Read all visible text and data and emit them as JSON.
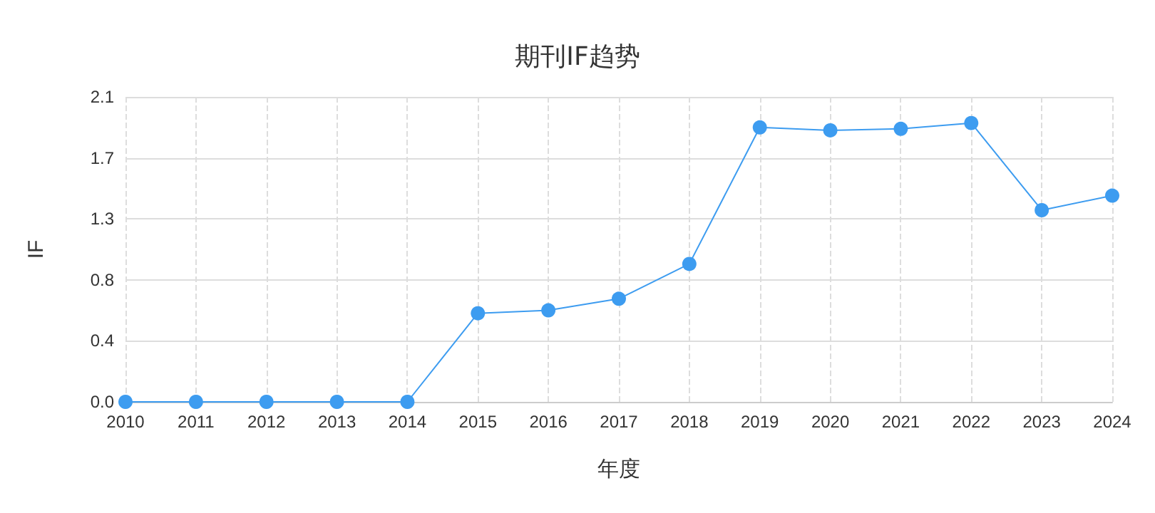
{
  "chart_data": {
    "type": "line",
    "title": "期刊IF趋势",
    "xlabel": "年度",
    "ylabel": "IF",
    "categories": [
      "2010",
      "2011",
      "2012",
      "2013",
      "2014",
      "2015",
      "2016",
      "2017",
      "2018",
      "2019",
      "2020",
      "2021",
      "2022",
      "2023",
      "2024"
    ],
    "series": [
      {
        "color": "#3d9cf0",
        "values": [
          0,
          0,
          0,
          0,
          0,
          0.61,
          0.63,
          0.71,
          0.95,
          1.89,
          1.87,
          1.88,
          1.92,
          1.32,
          1.42
        ]
      }
    ],
    "ylim": [
      0,
      2.1
    ],
    "yticks": [
      {
        "value": 0,
        "label": "0.0"
      },
      {
        "value": 0.42,
        "label": "0.4"
      },
      {
        "value": 0.84,
        "label": "0.8"
      },
      {
        "value": 1.26,
        "label": "1.3"
      },
      {
        "value": 1.68,
        "label": "1.7"
      },
      {
        "value": 2.1,
        "label": "2.1"
      }
    ],
    "grid": true,
    "marker": "circle",
    "line_style": "solid"
  }
}
